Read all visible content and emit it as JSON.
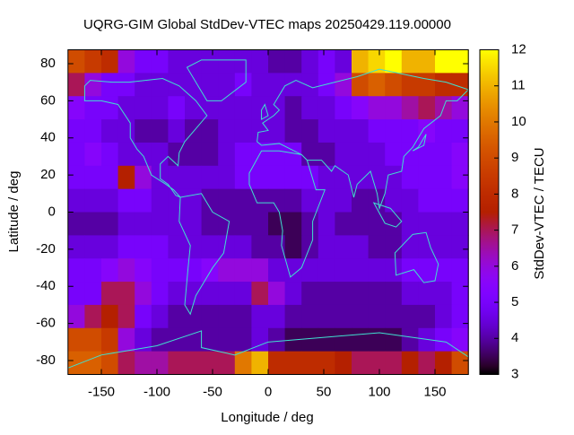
{
  "chart_data": {
    "type": "heatmap",
    "title": "UQRG-GIM Global StdDev-VTEC maps 20250429.119.00000",
    "xlabel": "Longitude / deg",
    "ylabel": "Latitude / deg",
    "cblabel": "StdDev-VTEC / TECU",
    "xlim": [
      -180,
      180
    ],
    "ylim": [
      -87.5,
      87.5
    ],
    "cblim": [
      3,
      12
    ],
    "xticks": [
      -150,
      -100,
      -50,
      0,
      50,
      100,
      150
    ],
    "yticks": [
      -80,
      -60,
      -40,
      -20,
      0,
      20,
      40,
      60,
      80
    ],
    "cbticks": [
      3,
      4,
      5,
      6,
      7,
      8,
      9,
      10,
      11,
      12
    ],
    "x_bins": [
      -180,
      -165,
      -150,
      -135,
      -120,
      -105,
      -90,
      -75,
      -60,
      -45,
      -30,
      -15,
      0,
      15,
      30,
      45,
      60,
      75,
      90,
      105,
      120,
      135,
      150,
      165,
      180
    ],
    "y_bins": [
      87.5,
      75,
      62.5,
      50,
      37.5,
      25,
      12.5,
      0,
      -12.5,
      -25,
      -37.5,
      -50,
      -62.5,
      -75,
      -87.5
    ],
    "values": [
      [
        9,
        8.5,
        8,
        6,
        5,
        5,
        4.5,
        4.5,
        4.5,
        4.5,
        4.5,
        4.5,
        4,
        4,
        4.5,
        5,
        4.5,
        11,
        11.5,
        12,
        11,
        11,
        12,
        12
      ],
      [
        7,
        6,
        5,
        5,
        4.5,
        4.5,
        4.5,
        4.5,
        4.5,
        4.5,
        5,
        4.5,
        4.5,
        4.5,
        4.5,
        5,
        6,
        9,
        9.5,
        9,
        8.5,
        8.5,
        8,
        8
      ],
      [
        5.5,
        5,
        5,
        4.5,
        4.5,
        4.5,
        5,
        4.5,
        4.5,
        4.5,
        4.5,
        4.5,
        4.5,
        4,
        4.5,
        4.5,
        5,
        5.5,
        6,
        6,
        6.5,
        7,
        6.5,
        6
      ],
      [
        5,
        5,
        4.5,
        4.5,
        4,
        4,
        4.5,
        4,
        4,
        4.5,
        4.5,
        4.5,
        4.5,
        4,
        4,
        4.5,
        4.5,
        4.5,
        5,
        5,
        5,
        5.5,
        5,
        5
      ],
      [
        5,
        5.5,
        5,
        4.5,
        4.5,
        4.5,
        4,
        4,
        4,
        4.5,
        5,
        5,
        5,
        5,
        4,
        4,
        4.5,
        4.5,
        4.5,
        5,
        5,
        5,
        5,
        5.5
      ],
      [
        5,
        5,
        5,
        7.5,
        6,
        4.5,
        4.5,
        4.5,
        4.5,
        4.5,
        5,
        5,
        5,
        5,
        5,
        4.5,
        4.5,
        4.5,
        4.5,
        4.5,
        5,
        5,
        5,
        5.5
      ],
      [
        4.5,
        4.5,
        4.5,
        5,
        5,
        4.5,
        4.5,
        4.5,
        4,
        4,
        4,
        4,
        4,
        4,
        4.5,
        4.5,
        4.5,
        4,
        4,
        4.5,
        4.5,
        5,
        5,
        5
      ],
      [
        4,
        4,
        4,
        4.5,
        4.5,
        4.5,
        4.5,
        4.5,
        4,
        4,
        4,
        4,
        3.5,
        3.5,
        4,
        4.5,
        4,
        4,
        4,
        4,
        4.5,
        4.5,
        4.5,
        4.5
      ],
      [
        4.5,
        4.5,
        4.5,
        5,
        5,
        5,
        4.5,
        4.5,
        4.5,
        4.5,
        4.5,
        4,
        4,
        3.5,
        4,
        4.5,
        4.5,
        4.5,
        4,
        4,
        4.5,
        4.5,
        4.5,
        4.5
      ],
      [
        5,
        5,
        5.5,
        6,
        5.5,
        5,
        5,
        5,
        5.5,
        6,
        6,
        6,
        4.5,
        4.5,
        4.5,
        4.5,
        4.5,
        4.5,
        4.5,
        4.5,
        5,
        5,
        5,
        5
      ],
      [
        5,
        5,
        7,
        7,
        6,
        5,
        4.5,
        4.5,
        4.5,
        4.5,
        4.5,
        7,
        6,
        4.5,
        4,
        4,
        4,
        4,
        4,
        4,
        4.5,
        4.5,
        4.5,
        5
      ],
      [
        6,
        7,
        7.5,
        7,
        5,
        4.5,
        4,
        4,
        4,
        4,
        4,
        4.5,
        4.5,
        4,
        4,
        4,
        4,
        4,
        4,
        4,
        4,
        4,
        4.5,
        5
      ],
      [
        9,
        9,
        8.5,
        6,
        4.5,
        4,
        4,
        4,
        4,
        4,
        4,
        4.5,
        4,
        3.5,
        3.5,
        3.5,
        3.5,
        3.5,
        3.5,
        3.5,
        4,
        4.5,
        5,
        5.5
      ],
      [
        9.5,
        9.5,
        9,
        7,
        6.5,
        6.5,
        7,
        7,
        7,
        7,
        10,
        11,
        8,
        8,
        8,
        8,
        7.5,
        7,
        7,
        7,
        7.5,
        7,
        7.5,
        9
      ]
    ]
  }
}
